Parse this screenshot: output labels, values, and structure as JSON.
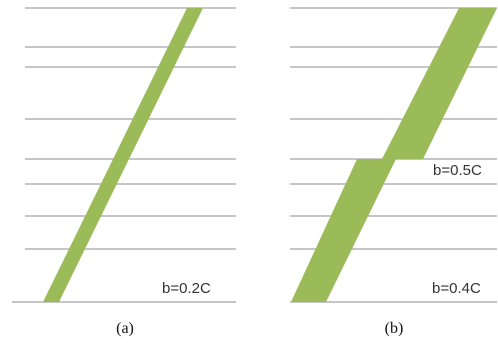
{
  "panel_a": {
    "label": "b=0.2C",
    "caption": "(a)"
  },
  "panel_b": {
    "label_top": "b=0.5C",
    "label_bottom": "b=0.4C",
    "caption": "(b)"
  },
  "colors": {
    "band": "#9bbb59",
    "line": "#8c8c8c",
    "text": "#333333"
  }
}
